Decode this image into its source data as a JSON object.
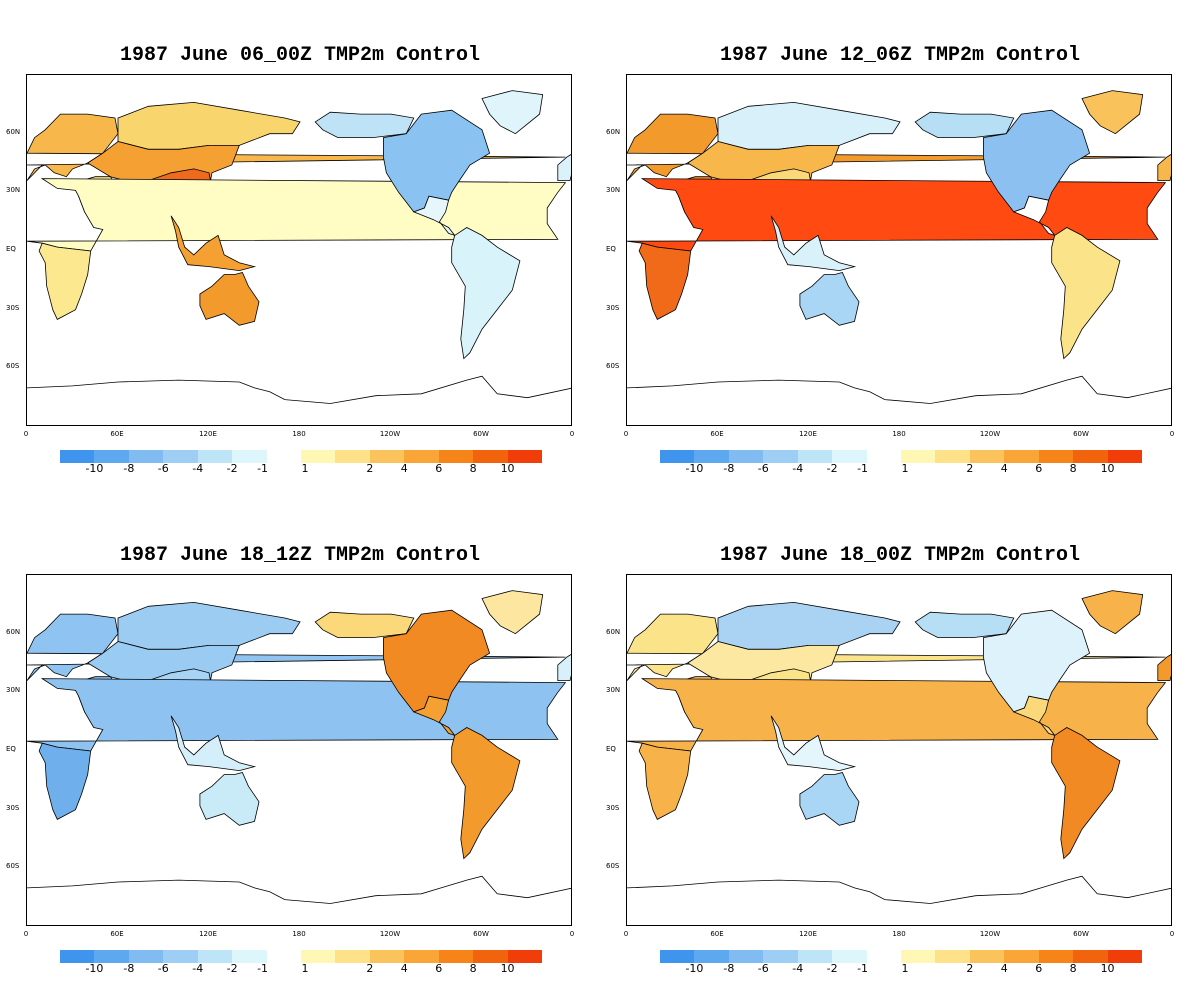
{
  "panels": [
    {
      "title": "1987 June 06_00Z TMP2m Control",
      "regions": {
        "europe": "#f7b74a",
        "asia_central": "#f5a033",
        "india_china": "#ee6a1e",
        "siberia": "#f9d56e",
        "middle_east": "#fce38a",
        "africa_north": "#fffcc4",
        "africa_south": "#fbe88f",
        "se_asia": "#f5a033",
        "australia": "#f39a2d",
        "north_america": "#8ac3f2",
        "alaska": "#bfe3f6",
        "central_america": "#e6f7fb",
        "south_america": "#d8f3f9",
        "greenland": "#dff4fb",
        "iberia": "#dcf2fb"
      }
    },
    {
      "title": "1987 June 12_06Z TMP2m Control",
      "regions": {
        "europe": "#f39a2d",
        "asia_central": "#f7b74a",
        "india_china": "#fbd87a",
        "siberia": "#d8f0fa",
        "middle_east": "#f28a24",
        "africa_north": "#ff4a12",
        "africa_south": "#f06a1a",
        "se_asia": "#d9f2fa",
        "australia": "#a9d6f4",
        "north_america": "#8cc0f0",
        "alaska": "#b6dff5",
        "central_america": "#ffffff",
        "south_america": "#fbe38a",
        "greenland": "#f9c25a",
        "iberia": "#f7b74a"
      }
    },
    {
      "title": "1987 June 18_12Z TMP2m Control",
      "regions": {
        "europe": "#8fc4f2",
        "asia_central": "#9acbf2",
        "india_china": "#a7d3f4",
        "siberia": "#9cccf2",
        "middle_east": "#8ec2f0",
        "africa_north": "#8ec2f0",
        "africa_south": "#6fb0ec",
        "se_asia": "#d4eff9",
        "australia": "#c9ebf8",
        "north_america": "#f28a24",
        "alaska": "#fbd87a",
        "central_america": "#f5a033",
        "south_america": "#f39a2d",
        "greenland": "#fce6a0",
        "iberia": "#d8f0fa"
      }
    },
    {
      "title": "1987 June 18_00Z TMP2m Control",
      "regions": {
        "europe": "#fbe38a",
        "asia_central": "#fce8a0",
        "india_china": "#fbe38a",
        "siberia": "#a9d2f3",
        "middle_east": "#fbc763",
        "africa_north": "#f7b24a",
        "africa_south": "#f7b24a",
        "se_asia": "#e4f5fb",
        "australia": "#a9d6f4",
        "north_america": "#ddf2fa",
        "alaska": "#b6dff5",
        "central_america": "#fbd87a",
        "south_america": "#f28a24",
        "greenland": "#f7b24a",
        "iberia": "#f39a2d"
      }
    }
  ],
  "lat_labels": [
    "60N",
    "30N",
    "EQ",
    "30S",
    "60S"
  ],
  "lon_labels": [
    "0",
    "60E",
    "120E",
    "180",
    "120W",
    "60W",
    "0"
  ],
  "colorbar": {
    "colors": [
      "#3f94ee",
      "#5ea8f0",
      "#80bbf2",
      "#9fcef4",
      "#bde5f7",
      "#ddf6fb",
      "#ffffff",
      "#fff7b3",
      "#fde28a",
      "#fbc35c",
      "#f9a537",
      "#f78418",
      "#f2630d",
      "#f03d0a"
    ],
    "labels": [
      "-10",
      "-8",
      "-6",
      "-4",
      "-2",
      "-1",
      "1",
      "2",
      "4",
      "6",
      "8",
      "10"
    ]
  }
}
